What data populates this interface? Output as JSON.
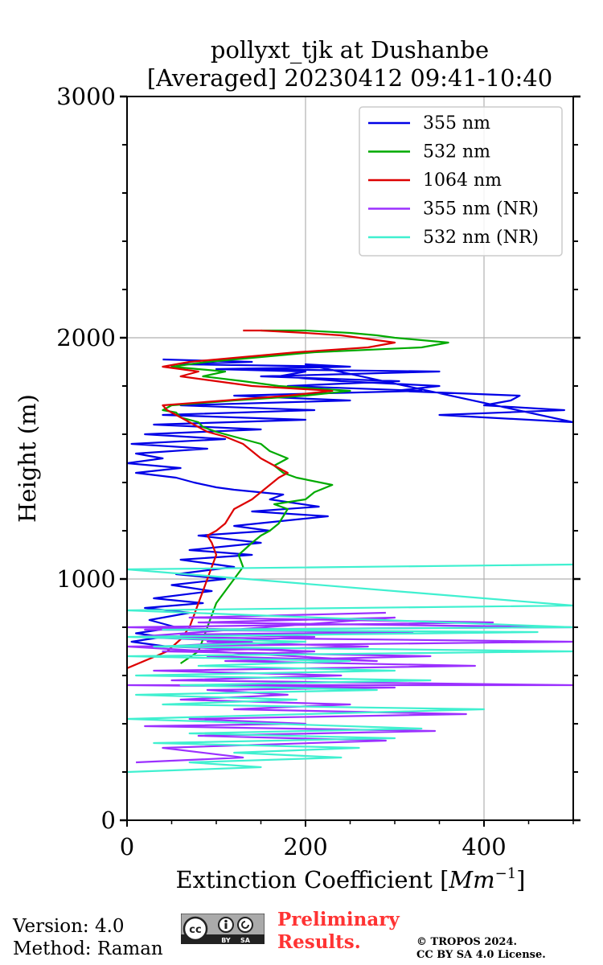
{
  "chart_data": {
    "type": "line",
    "title": "pollyxt_tjk at Dushanbe",
    "subtitle": "[Averaged] 20230412 09:41-10:40",
    "xlabel": "Extinction Coefficient [",
    "xlabel_math": "Mm",
    "xlabel_sup": "−1",
    "xlabel_end": "]",
    "ylabel": "Height (m)",
    "xlim": [
      0,
      500
    ],
    "ylim": [
      0,
      3000
    ],
    "xticks": [
      0,
      200,
      400
    ],
    "yticks": [
      0,
      1000,
      2000,
      3000
    ],
    "grid": true,
    "legend_position": "top-right",
    "series": [
      {
        "name": "355 nm",
        "color": "#0000e6",
        "x": [
          45,
          5,
          40,
          10,
          55,
          25,
          70,
          20,
          85,
          30,
          95,
          50,
          110,
          55,
          120,
          60,
          140,
          70,
          150,
          80,
          160,
          120,
          225,
          140,
          215,
          160,
          175,
          120,
          100,
          75,
          55,
          10,
          60,
          0,
          40,
          10,
          90,
          5,
          110,
          20,
          150,
          30,
          200,
          40,
          210,
          60,
          250,
          120,
          330,
          180,
          305,
          150,
          350,
          130,
          250,
          200,
          500,
          350,
          490,
          400,
          430,
          440,
          300,
          350,
          240,
          170,
          200,
          100,
          250,
          60,
          140,
          40
        ],
        "y": [
          720,
          740,
          760,
          775,
          800,
          830,
          860,
          880,
          900,
          920,
          950,
          975,
          1000,
          1020,
          1050,
          1080,
          1100,
          1120,
          1150,
          1180,
          1200,
          1220,
          1260,
          1280,
          1300,
          1330,
          1350,
          1370,
          1380,
          1400,
          1420,
          1440,
          1460,
          1480,
          1500,
          1520,
          1540,
          1560,
          1580,
          1600,
          1620,
          1640,
          1660,
          1680,
          1700,
          1720,
          1740,
          1760,
          1780,
          1800,
          1820,
          1840,
          1860,
          1870,
          1880,
          1890,
          1650,
          1680,
          1700,
          1720,
          1740,
          1760,
          1780,
          1800,
          1820,
          1840,
          1860,
          1870,
          1880,
          1890,
          1900,
          1910
        ]
      },
      {
        "name": "532 nm",
        "color": "#00aa00",
        "x": [
          60,
          80,
          85,
          90,
          95,
          100,
          110,
          120,
          130,
          125,
          140,
          150,
          160,
          170,
          175,
          180,
          165,
          200,
          210,
          230,
          190,
          175,
          165,
          180,
          160,
          150,
          120,
          100,
          85,
          80,
          60,
          55,
          40,
          50,
          120,
          200,
          250,
          170,
          130,
          85,
          110,
          50,
          90,
          150,
          210,
          330,
          360,
          300,
          280,
          250,
          200,
          150
        ],
        "y": [
          650,
          700,
          750,
          800,
          850,
          900,
          950,
          1000,
          1050,
          1100,
          1150,
          1180,
          1200,
          1230,
          1260,
          1290,
          1310,
          1330,
          1360,
          1390,
          1420,
          1440,
          1470,
          1500,
          1530,
          1560,
          1590,
          1610,
          1630,
          1650,
          1670,
          1690,
          1700,
          1720,
          1740,
          1760,
          1780,
          1800,
          1820,
          1840,
          1860,
          1880,
          1900,
          1920,
          1940,
          1960,
          1980,
          2000,
          2010,
          2020,
          2030,
          2030
        ]
      },
      {
        "name": "1064 nm",
        "color": "#dd0000",
        "x": [
          0,
          45,
          60,
          70,
          75,
          80,
          85,
          90,
          95,
          100,
          95,
          90,
          100,
          110,
          115,
          120,
          130,
          140,
          150,
          160,
          170,
          180,
          165,
          150,
          140,
          130,
          110,
          90,
          80,
          70,
          60,
          50,
          45,
          40,
          110,
          180,
          230,
          140,
          100,
          60,
          80,
          40,
          70,
          130,
          190,
          270,
          300,
          260,
          240,
          200,
          150,
          130
        ],
        "y": [
          630,
          700,
          750,
          800,
          850,
          900,
          950,
          1000,
          1050,
          1100,
          1150,
          1180,
          1200,
          1230,
          1260,
          1290,
          1310,
          1330,
          1360,
          1390,
          1420,
          1440,
          1470,
          1500,
          1530,
          1560,
          1590,
          1610,
          1630,
          1650,
          1670,
          1690,
          1700,
          1720,
          1740,
          1760,
          1780,
          1800,
          1820,
          1840,
          1860,
          1880,
          1900,
          1920,
          1940,
          1960,
          1980,
          2000,
          2010,
          2020,
          2030,
          2030
        ]
      },
      {
        "name": "355 nm (NR)",
        "color": "#9b30ff",
        "x": [
          10,
          130,
          40,
          290,
          80,
          345,
          20,
          200,
          70,
          380,
          120,
          250,
          60,
          180,
          90,
          300,
          0,
          500,
          50,
          240,
          30,
          390,
          110,
          340,
          40,
          270,
          90,
          210,
          60,
          320,
          20,
          500,
          80,
          300,
          10,
          140,
          40,
          210,
          90,
          280,
          0,
          500,
          20,
          280,
          0,
          410,
          70,
          290
        ],
        "y": [
          240,
          260,
          300,
          330,
          350,
          370,
          390,
          400,
          420,
          440,
          460,
          480,
          500,
          520,
          540,
          550,
          560,
          560,
          580,
          600,
          620,
          640,
          660,
          680,
          700,
          720,
          740,
          760,
          770,
          780,
          790,
          800,
          820,
          840,
          760,
          740,
          720,
          700,
          680,
          660,
          720,
          740,
          760,
          780,
          800,
          820,
          840,
          860
        ]
      },
      {
        "name": "532 nm (NR)",
        "color": "#40f0d0",
        "x": [
          0,
          150,
          70,
          240,
          120,
          260,
          30,
          300,
          70,
          330,
          0,
          400,
          40,
          190,
          10,
          280,
          60,
          340,
          10,
          300,
          80,
          250,
          0,
          500,
          30,
          200,
          0,
          460,
          40,
          500,
          0,
          500,
          0,
          500
        ],
        "y": [
          200,
          220,
          240,
          260,
          280,
          300,
          320,
          340,
          360,
          380,
          420,
          460,
          480,
          500,
          520,
          540,
          560,
          580,
          600,
          620,
          640,
          660,
          680,
          700,
          720,
          740,
          760,
          780,
          790,
          800,
          870,
          890,
          1040,
          1060
        ]
      }
    ]
  },
  "footer": {
    "version": "Version: 4.0",
    "method": "Method: Raman",
    "preliminary_line1": "Preliminary",
    "preliminary_line2": "Results.",
    "copyright_line1": "© TROPOS 2024.",
    "copyright_line2": "CC BY SA 4.0 License.",
    "license_badge": {
      "cc": "cc",
      "by": "BY",
      "sa": "SA"
    },
    "colors": {
      "preliminary": "#ff3333",
      "badge_bg": "#aaaaaa",
      "badge_dark": "#222222"
    }
  }
}
